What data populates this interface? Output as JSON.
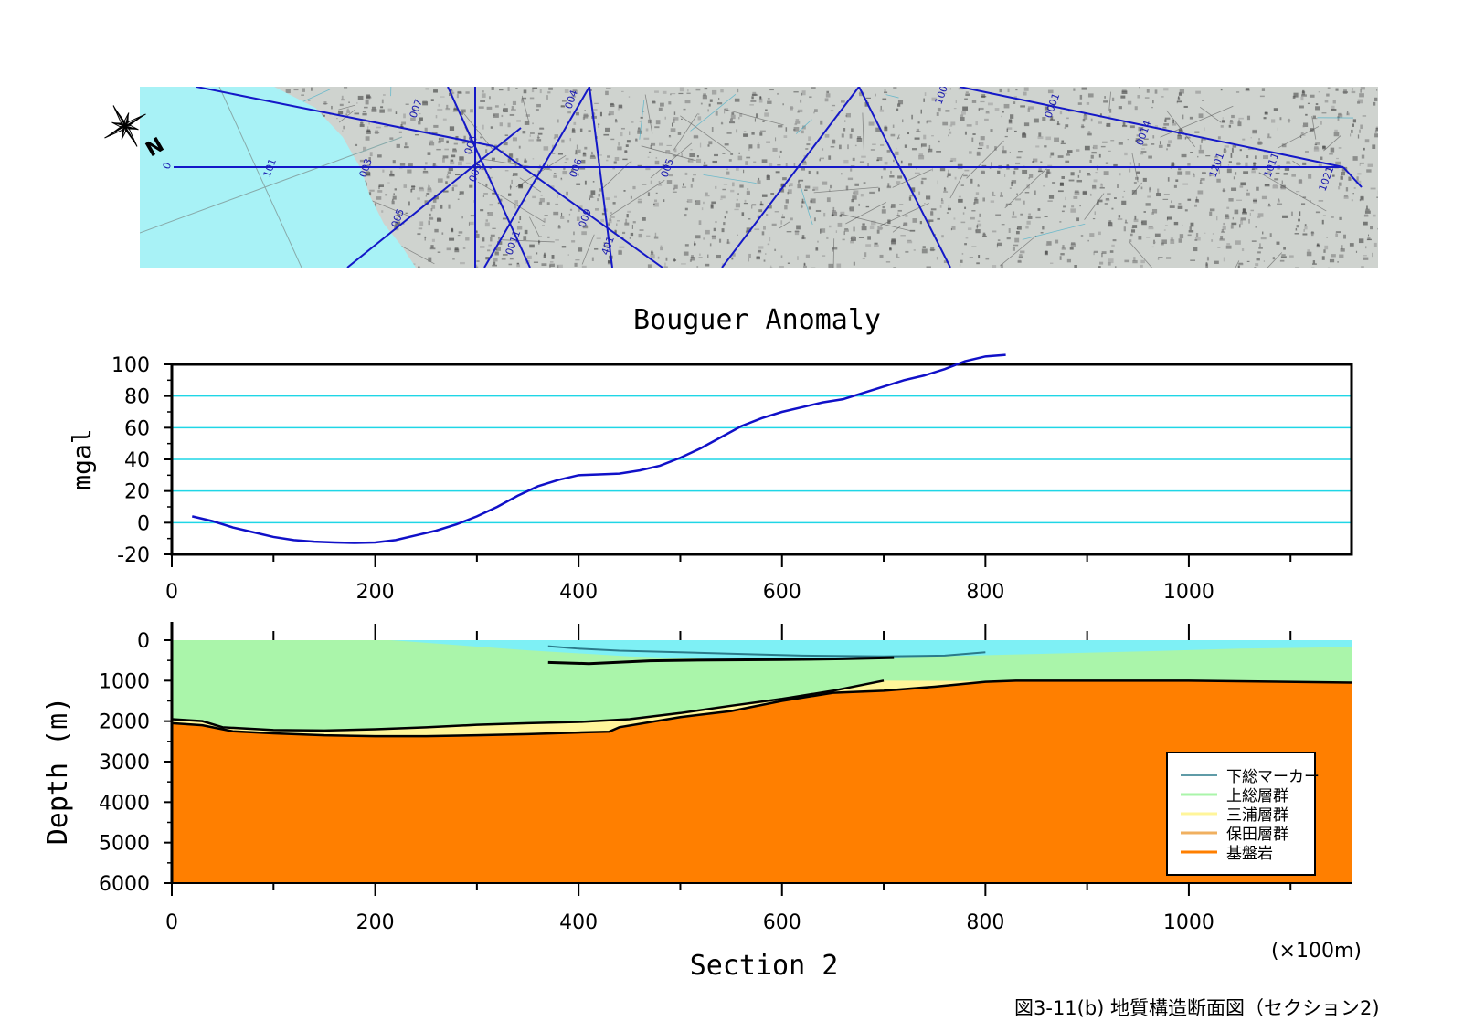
{
  "colors": {
    "sea": "#a8f2f6",
    "map_land": "#cfd3cf",
    "survey_line": "#1418c8",
    "grid": "#1fd6e6",
    "bouguer_line": "#1010c8",
    "shimosa": "#2a7a8a",
    "kazusa": "#aaf5aa",
    "miura": "#fff59a",
    "hota": "#f0b060",
    "basement": "#ff7f00",
    "surface_layer": "#7ef0f5"
  },
  "map": {
    "compass_label": "N",
    "line_labels": [
      "0",
      "101",
      "003",
      "005",
      "009",
      "007",
      "006",
      "0011",
      "1001",
      "1201",
      "1011",
      "1021",
      "005",
      "006",
      "004",
      "0001",
      "401",
      "009",
      "0014"
    ]
  },
  "chart_data": [
    {
      "type": "line",
      "title": "Bouguer Anomaly",
      "xlabel": "",
      "ylabel": "mgal",
      "xlim": [
        0,
        1160
      ],
      "ylim": [
        -20,
        100
      ],
      "xticks": [
        "0",
        "200",
        "400",
        "600",
        "800",
        "1000"
      ],
      "yticks": [
        "-20",
        "0",
        "20",
        "40",
        "60",
        "80",
        "100"
      ],
      "grid": true,
      "x": [
        20,
        40,
        60,
        80,
        100,
        120,
        140,
        160,
        180,
        200,
        220,
        240,
        260,
        280,
        300,
        320,
        340,
        360,
        380,
        400,
        420,
        440,
        460,
        480,
        500,
        520,
        540,
        560,
        580,
        600,
        620,
        640,
        660,
        680,
        700,
        720,
        740,
        760,
        780,
        800,
        820
      ],
      "values": [
        4,
        1,
        -3,
        -6,
        -9,
        -11,
        -12,
        -12.5,
        -12.8,
        -12.5,
        -11,
        -8,
        -5,
        -1,
        4,
        10,
        17,
        23,
        27,
        30,
        30.5,
        31,
        33,
        36,
        41,
        47,
        54,
        61,
        66,
        70,
        73,
        76,
        78,
        82,
        86,
        90,
        93,
        97,
        102,
        105,
        106
      ]
    },
    {
      "type": "area",
      "title": "",
      "xlabel": "Section 2",
      "x_unit": "(×100m)",
      "ylabel": "Depth (m)",
      "xlim": [
        0,
        1160
      ],
      "ylim": [
        6000,
        0
      ],
      "xticks": [
        "0",
        "200",
        "400",
        "600",
        "800",
        "1000"
      ],
      "yticks": [
        "0",
        "1000",
        "2000",
        "3000",
        "4000",
        "5000",
        "6000"
      ],
      "legend_position": "bottom-right",
      "legend": [
        "下総マーカー",
        "上総層群",
        "三浦層群",
        "保田層群",
        "基盤岩"
      ],
      "surface_layer_base": {
        "x": [
          215,
          350,
          450,
          550,
          650,
          750,
          850,
          950,
          1050,
          1160
        ],
        "depth": [
          0,
          250,
          400,
          480,
          470,
          400,
          340,
          280,
          210,
          170
        ]
      },
      "shimosa_marker": {
        "x": [
          370,
          400,
          440,
          500,
          560,
          620,
          700,
          760,
          800
        ],
        "depth": [
          150,
          210,
          260,
          300,
          340,
          380,
          400,
          380,
          300
        ]
      },
      "shimosa_marker_base": {
        "x": [
          370,
          410,
          470,
          530,
          600,
          660,
          710
        ],
        "depth": [
          550,
          580,
          510,
          490,
          480,
          460,
          430
        ]
      },
      "kazusa_base": {
        "x": [
          0,
          30,
          50,
          100,
          150,
          200,
          250,
          300,
          350,
          400,
          450,
          500,
          550,
          600,
          650,
          700
        ],
        "depth": [
          1950,
          2000,
          2150,
          2220,
          2230,
          2200,
          2150,
          2090,
          2050,
          2020,
          1950,
          1800,
          1620,
          1450,
          1250,
          1000
        ]
      },
      "basement_top": {
        "x": [
          0,
          30,
          60,
          100,
          150,
          200,
          250,
          300,
          350,
          400,
          430,
          440,
          500,
          550,
          600,
          650,
          700,
          750,
          800,
          830,
          1000,
          1160
        ],
        "depth": [
          2050,
          2100,
          2250,
          2300,
          2350,
          2370,
          2370,
          2350,
          2320,
          2280,
          2260,
          2150,
          1900,
          1750,
          1500,
          1300,
          1250,
          1150,
          1030,
          1000,
          1000,
          1050
        ]
      }
    }
  ],
  "caption": "図3-11(b)  地質構造断面図（セクション2)"
}
